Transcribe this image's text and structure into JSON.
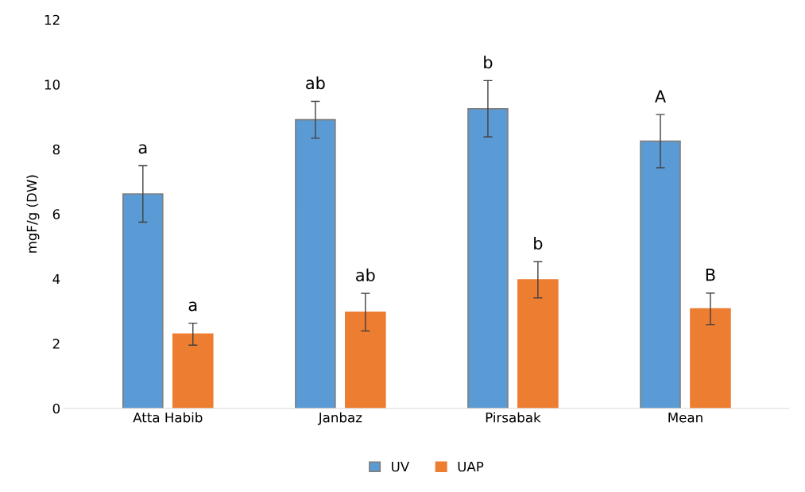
{
  "chart_data": {
    "type": "bar",
    "ylabel": "mgF/g (DW)",
    "categories": [
      "Atta Habib",
      "Janbaz",
      "Pirsabak",
      "Mean"
    ],
    "series": [
      {
        "name": "UV",
        "color": "#5b9bd5",
        "values": [
          6.62,
          8.91,
          9.25,
          8.25
        ],
        "errors": [
          0.87,
          0.57,
          0.87,
          0.82
        ]
      },
      {
        "name": "UAP",
        "color": "#ed7d31",
        "values": [
          2.29,
          2.97,
          3.97,
          3.07
        ],
        "errors": [
          0.34,
          0.58,
          0.56,
          0.49
        ]
      }
    ],
    "ylim": [
      0,
      12
    ],
    "yticks": [
      0,
      2,
      4,
      6,
      8,
      10,
      12
    ],
    "grid": false,
    "legend": "bottom",
    "annotations": [
      "a",
      "ab",
      "b",
      "A",
      "a",
      "ab",
      "b",
      "B"
    ]
  }
}
